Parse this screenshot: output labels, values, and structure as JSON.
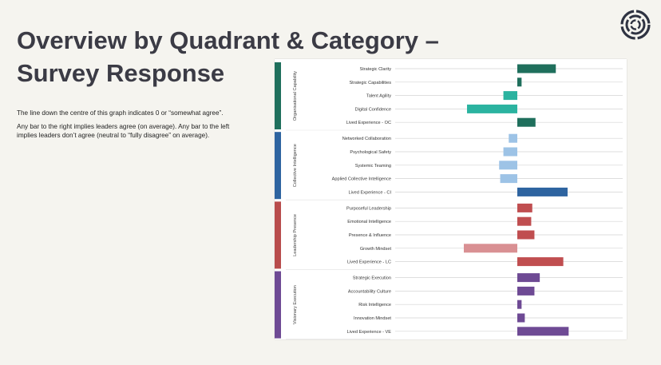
{
  "page": {
    "title": "Overview by Quadrant & Category – Survey Response",
    "description_1": "The line down the centre of this graph indicates 0 or “somewhat agree”.",
    "description_2": "Any  bar to the right implies leaders agree (on average). Any bar to the left implies leaders don’t agree (neutral to “fully disagree” on average)."
  },
  "logo": {
    "icon": "circular-swirl-logo-icon",
    "color": "#2f3342"
  },
  "chart_data": {
    "type": "bar",
    "orientation": "horizontal",
    "title": "",
    "xlabel": "",
    "ylabel": "",
    "center_line_label": "0 / somewhat agree",
    "xlim": [
      -1.0,
      1.0
    ],
    "groups": [
      {
        "name": "Organisational Capability",
        "color": "#1f6f5c",
        "categories": [
          "Strategic Clarity",
          "Strategic Capabilities",
          "Talent Agility",
          "Digital Confidence",
          "Lived Experience - OC"
        ],
        "values": [
          0.36,
          0.04,
          -0.13,
          -0.47,
          0.17
        ],
        "colors": [
          "#1f6f5c",
          "#1f6f5c",
          "#2bb3a0",
          "#2bb3a0",
          "#1f6f5c"
        ]
      },
      {
        "name": "Collective Intelligence",
        "color": "#2e64a0",
        "categories": [
          "Networked Collaboration",
          "Psychological Safety",
          "Systemic Teaming",
          "Applied Collective Intelligence",
          "Lived Experience - CI"
        ],
        "values": [
          -0.08,
          -0.13,
          -0.17,
          -0.16,
          0.47
        ],
        "colors": [
          "#9dc3e6",
          "#9dc3e6",
          "#9dc3e6",
          "#9dc3e6",
          "#2e64a0"
        ]
      },
      {
        "name": "Leadership Presence",
        "color": "#b84c4c",
        "categories": [
          "Purposeful Leadership",
          "Emotional Intelligence",
          "Presence & Influence",
          "Growth Mindset",
          "Lived Experience - LC"
        ],
        "values": [
          0.14,
          0.13,
          0.16,
          -0.5,
          0.43
        ],
        "colors": [
          "#c04e50",
          "#c04e50",
          "#c04e50",
          "#d99093",
          "#c04e50"
        ]
      },
      {
        "name": "Visionary Execution",
        "color": "#6e4a94",
        "categories": [
          "Strategic Execution",
          "Accountability Culture",
          "Risk Intelligence",
          "Innovation Mindset",
          "Lived Experience - VE"
        ],
        "values": [
          0.21,
          0.16,
          0.04,
          0.07,
          0.48
        ],
        "colors": [
          "#6e4a94",
          "#6e4a94",
          "#6e4a94",
          "#6e4a94",
          "#6e4a94"
        ]
      }
    ]
  }
}
